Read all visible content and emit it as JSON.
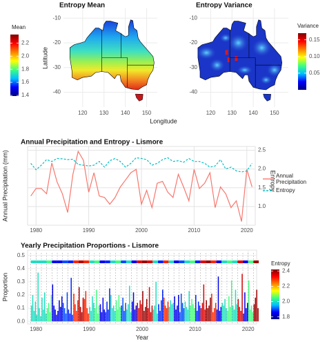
{
  "chart_data": [
    {
      "type": "map",
      "title": "Entropy Mean",
      "xlabel": "Longitude",
      "ylabel": "Latitude",
      "legend_title": "Mean",
      "xlim": [
        111,
        155
      ],
      "xticks": [
        120,
        130,
        140,
        150
      ],
      "ylim": [
        -46,
        -6
      ],
      "yticks": [
        -10,
        -20,
        -30,
        -40
      ],
      "clim": [
        1.39,
        2.33
      ],
      "cticks": [
        1.4,
        1.6,
        1.8,
        {
          "value": 2,
          "label": "2.0"
        },
        2.2
      ],
      "colormap": [
        "#00007f",
        "#0000ff",
        "#00c0ff",
        "#40ff80",
        "#ffff00",
        "#ff8000",
        "#ff0000",
        "#7f0000"
      ]
    },
    {
      "type": "map",
      "title": "Entropy Variance",
      "legend_title": "Variance",
      "xlim": [
        115,
        156.5
      ],
      "xticks": [
        120,
        130,
        140,
        150
      ],
      "ylim": [
        -46,
        -6
      ],
      "yticks": [
        -10,
        -20,
        -30,
        -40
      ],
      "clim": [
        0,
        0.17
      ],
      "cticks": [
        0.05,
        {
          "value": 0.1,
          "label": "0.10"
        },
        0.15
      ],
      "colormap": [
        "#00007f",
        "#0000ff",
        "#00c0ff",
        "#40ff80",
        "#ffff00",
        "#ff8000",
        "#ff0000",
        "#7f0000"
      ]
    },
    {
      "type": "line",
      "title": "Annual Precipitation and Entropy - Lismore",
      "ylabel": "Annual Precipitation (mm)",
      "y2label": "Entropy",
      "x": [
        1979,
        1980,
        1981,
        1982,
        1983,
        1984,
        1985,
        1986,
        1987,
        1988,
        1989,
        1990,
        1991,
        1992,
        1993,
        1994,
        1995,
        1996,
        1997,
        1998,
        1999,
        2000,
        2001,
        2002,
        2003,
        2004,
        2005,
        2006,
        2007,
        2008,
        2009,
        2010,
        2011,
        2012,
        2013,
        2014,
        2015,
        2016,
        2017,
        2018,
        2019,
        2020,
        2021
      ],
      "xlim": [
        1978.4,
        2021.6
      ],
      "xticks": [
        1980,
        1990,
        2000,
        2010,
        2020
      ],
      "ylim": [
        500,
        2600
      ],
      "y2lim": [
        0.5,
        2.6
      ],
      "y2ticks": [
        {
          "value": 1,
          "label": "1.0"
        },
        1.5,
        {
          "value": 2,
          "label": "2.0"
        },
        2.5
      ],
      "series": [
        {
          "name": "Annual Precipitation",
          "color": "#f8766d",
          "linetype": "solid",
          "values": [
            1280,
            1480,
            1480,
            1340,
            2160,
            1650,
            1340,
            840,
            1860,
            2470,
            2230,
            1380,
            1900,
            1280,
            1240,
            1060,
            1240,
            1520,
            1710,
            1900,
            1990,
            1060,
            1430,
            970,
            1620,
            1670,
            1380,
            1240,
            1860,
            1520,
            1150,
            1990,
            1480,
            1620,
            1900,
            970,
            1520,
            1340,
            970,
            1150,
            600,
            1990,
            1520
          ]
        },
        {
          "name": "Entropy",
          "color": "#00bfc4",
          "linetype": "dashed",
          "axis": "y2",
          "values": [
            2.15,
            1.98,
            2.1,
            2.25,
            2.2,
            2.28,
            2.27,
            2.25,
            2.26,
            2.12,
            2.1,
            2.08,
            2.1,
            2.2,
            2.05,
            2.22,
            2.28,
            2.2,
            2.05,
            2.15,
            2.3,
            2.28,
            2.25,
            2.1,
            2.15,
            2.25,
            2.3,
            2.2,
            2.22,
            2.18,
            2.28,
            2.2,
            2.2,
            2.15,
            2.05,
            2.08,
            2.25,
            2.0,
            2.05,
            1.95,
            1.92,
            1.95,
            2.15
          ]
        }
      ]
    },
    {
      "type": "bar",
      "title": "Yearly Precipitation Proportions - Lismore",
      "xlabel": "Year",
      "ylabel": "Proportion",
      "legend_title": "Entropy",
      "x": [
        1979,
        1980,
        1981,
        1982,
        1983,
        1984,
        1985,
        1986,
        1987,
        1988,
        1989,
        1990,
        1991,
        1992,
        1993,
        1994,
        1995,
        1996,
        1997,
        1998,
        1999,
        2000,
        2001,
        2002,
        2003,
        2004,
        2005,
        2006,
        2007,
        2008,
        2009,
        2010,
        2011,
        2012,
        2013,
        2014,
        2015,
        2016,
        2017,
        2018,
        2019,
        2020,
        2021
      ],
      "xlim": [
        1978.4,
        2021.6
      ],
      "xticks": [
        1980,
        1990,
        2000,
        2010,
        2020
      ],
      "ylim": [
        -0.02,
        0.54
      ],
      "yticks": [
        {
          "value": 0,
          "label": "0.0"
        },
        0.1,
        0.2,
        0.3,
        0.4,
        0.5
      ],
      "values": [
        [
          0.12,
          0.2,
          0.08,
          0.15
        ],
        [
          0.05,
          0.37,
          0.1,
          0.04
        ],
        [
          0.18,
          0.09,
          0.22,
          0.06
        ],
        [
          0.1,
          0.14,
          0.07,
          0.2
        ],
        [
          0.28,
          0.12,
          0.09,
          0.05
        ],
        [
          0.08,
          0.16,
          0.11,
          0.19
        ],
        [
          0.14,
          0.1,
          0.06,
          0.22
        ],
        [
          0.09,
          0.06,
          0.33,
          0.05
        ],
        [
          0.21,
          0.13,
          0.08,
          0.16
        ],
        [
          0.26,
          0.11,
          0.07,
          0.18
        ],
        [
          0.17,
          0.23,
          0.1,
          0.06
        ],
        [
          0.11,
          0.08,
          0.19,
          0.14
        ],
        [
          0.1,
          0.24,
          0.06,
          0.12
        ],
        [
          0.13,
          0.07,
          0.18,
          0.09
        ],
        [
          0.07,
          0.15,
          0.09,
          0.25
        ],
        [
          0.2,
          0.1,
          0.12,
          0.08
        ],
        [
          0.16,
          0.09,
          0.2,
          0.11
        ],
        [
          0.12,
          0.18,
          0.08,
          0.14
        ],
        [
          0.09,
          0.13,
          0.27,
          0.07
        ],
        [
          0.15,
          0.22,
          0.09,
          0.12
        ],
        [
          0.14,
          0.1,
          0.16,
          0.13
        ],
        [
          0.23,
          0.08,
          0.11,
          0.17
        ],
        [
          0.1,
          0.26,
          0.07,
          0.12
        ],
        [
          0.09,
          0.12,
          0.3,
          0.06
        ],
        [
          0.13,
          0.08,
          0.16,
          0.24
        ],
        [
          0.18,
          0.12,
          0.1,
          0.15
        ],
        [
          0.11,
          0.16,
          0.13,
          0.14
        ],
        [
          0.19,
          0.09,
          0.12,
          0.2
        ],
        [
          0.07,
          0.21,
          0.14,
          0.1
        ],
        [
          0.15,
          0.11,
          0.09,
          0.23
        ],
        [
          0.12,
          0.17,
          0.13,
          0.1
        ],
        [
          0.2,
          0.08,
          0.15,
          0.12
        ],
        [
          0.1,
          0.14,
          0.28,
          0.09
        ],
        [
          0.16,
          0.1,
          0.12,
          0.18
        ],
        [
          0.21,
          0.07,
          0.1,
          0.14
        ],
        [
          0.09,
          0.34,
          0.08,
          0.11
        ],
        [
          0.14,
          0.12,
          0.17,
          0.1
        ],
        [
          0.08,
          0.19,
          0.11,
          0.31
        ],
        [
          0.12,
          0.09,
          0.24,
          0.13
        ],
        [
          0.17,
          0.11,
          0.08,
          0.36
        ],
        [
          0.06,
          0.22,
          0.1,
          0.14
        ],
        [
          0.31,
          0.09,
          0.12,
          0.07
        ],
        [
          0.13,
          0.18,
          0.24,
          0.1
        ]
      ],
      "entropy": [
        2.0,
        2.0,
        2.0,
        2.05,
        1.85,
        1.85,
        1.9,
        1.88,
        2.3,
        2.38,
        2.3,
        2.0,
        2.05,
        1.85,
        1.88,
        2.0,
        2.05,
        1.9,
        2.0,
        1.85,
        2.35,
        2.4,
        2.35,
        2.0,
        1.88,
        2.3,
        2.0,
        1.85,
        1.9,
        2.0,
        2.05,
        1.88,
        2.35,
        2.4,
        2.3,
        1.85,
        2.0,
        2.05,
        2.0,
        2.35,
        1.85,
        2.05,
        2.4
      ],
      "clim": [
        1.77,
        2.42
      ],
      "cticks": [
        1.8,
        {
          "value": 2,
          "label": "2.0"
        },
        2.2,
        2.4
      ],
      "colormap": [
        "#00007f",
        "#0000ff",
        "#00c0ff",
        "#40ff80",
        "#ffff00",
        "#ff8000",
        "#ff0000",
        "#7f0000"
      ]
    }
  ]
}
